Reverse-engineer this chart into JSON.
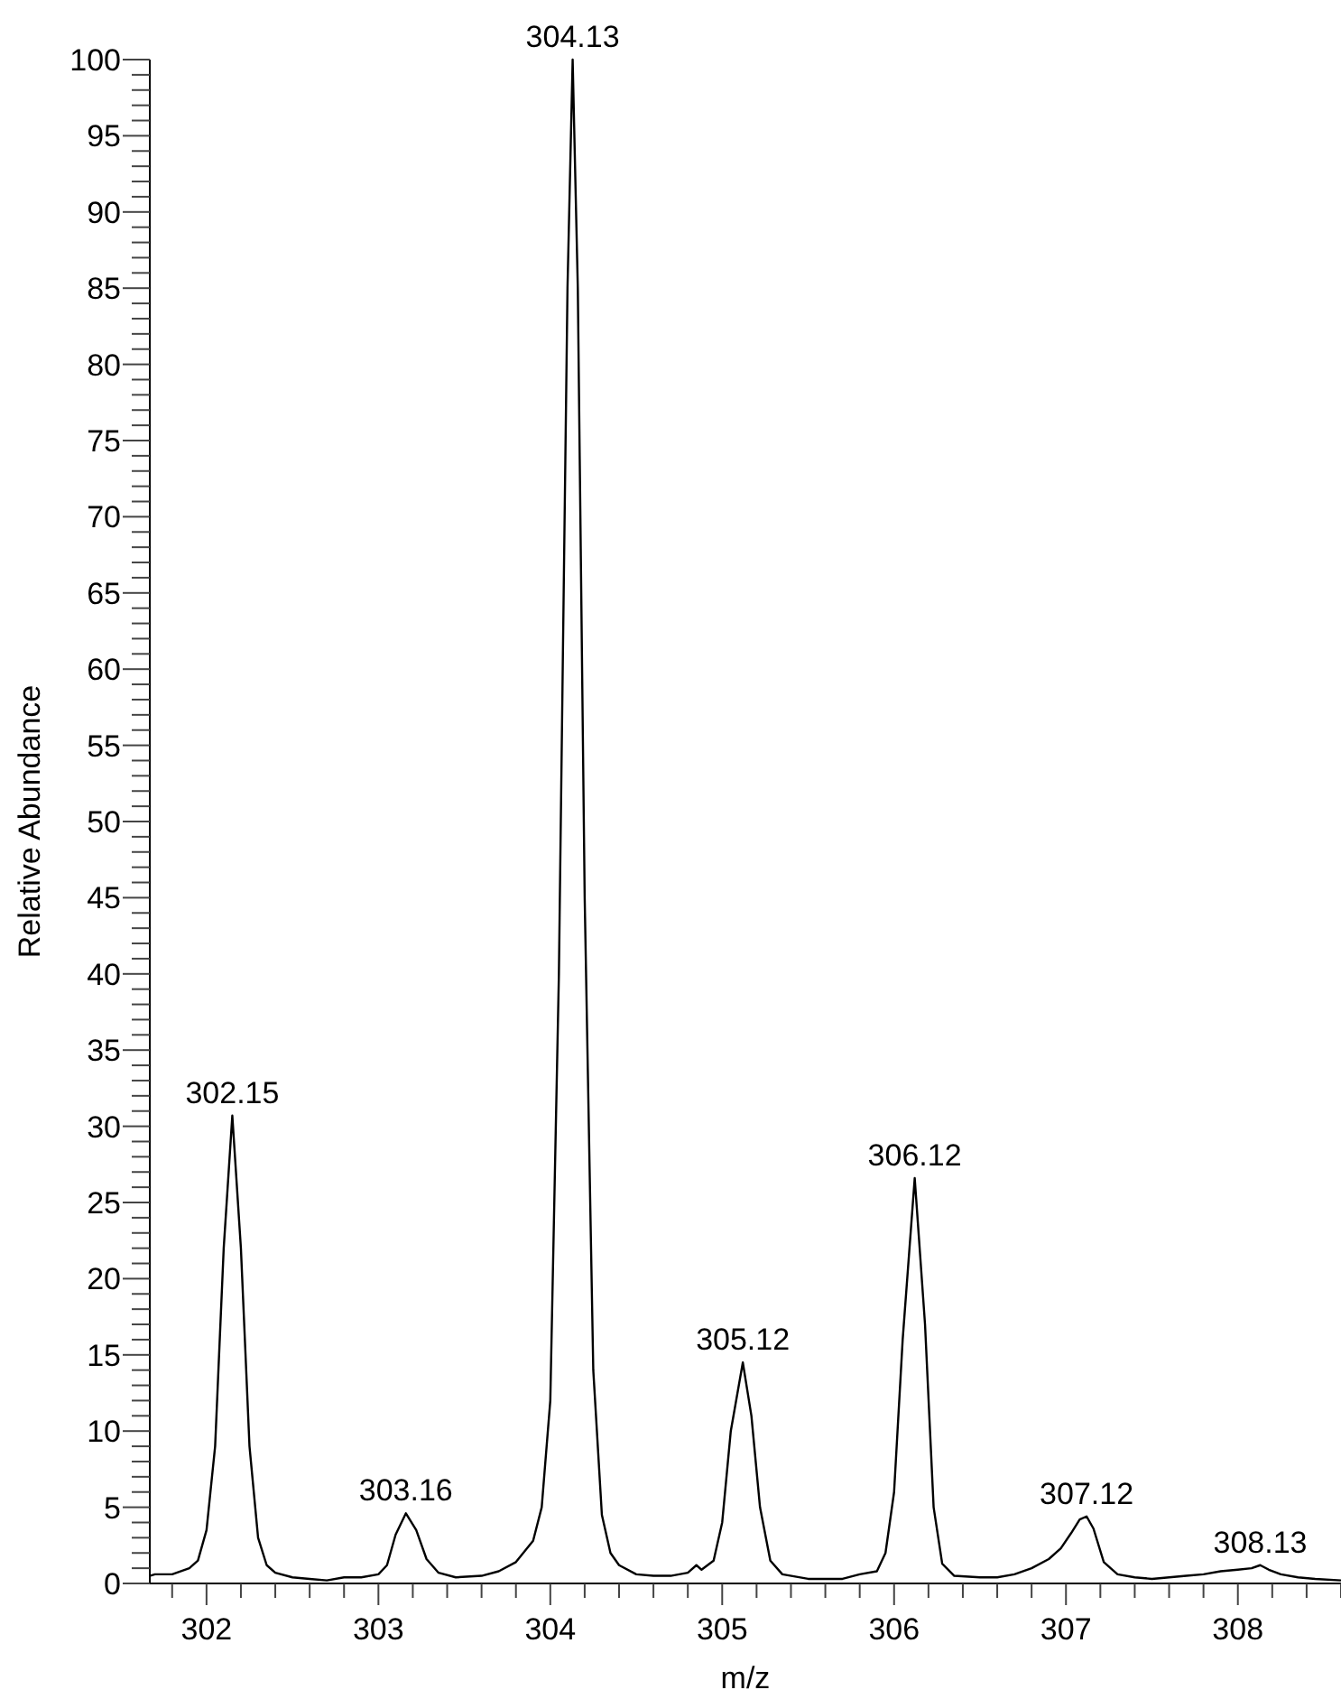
{
  "chart_data": {
    "type": "line",
    "xlabel": "m/z",
    "ylabel": "Relative Abundance",
    "xlim": [
      301.67,
      308.6
    ],
    "xticks": [
      {
        "value": 301.8,
        "label": null
      },
      302,
      {
        "value": 302.2,
        "label": null
      },
      {
        "value": 302.4,
        "label": null
      },
      {
        "value": 302.6,
        "label": null
      },
      {
        "value": 302.8,
        "label": null
      },
      303,
      {
        "value": 303.2,
        "label": null
      },
      {
        "value": 303.4,
        "label": null
      },
      {
        "value": 303.6,
        "label": null
      },
      {
        "value": 303.8,
        "label": null
      },
      304,
      {
        "value": 304.2,
        "label": null
      },
      {
        "value": 304.4,
        "label": null
      },
      {
        "value": 304.6,
        "label": null
      },
      {
        "value": 304.8,
        "label": null
      },
      305,
      {
        "value": 305.2,
        "label": null
      },
      {
        "value": 305.4,
        "label": null
      },
      {
        "value": 305.6,
        "label": null
      },
      {
        "value": 305.8,
        "label": null
      },
      306,
      {
        "value": 306.2,
        "label": null
      },
      {
        "value": 306.4,
        "label": null
      },
      {
        "value": 306.6,
        "label": null
      },
      {
        "value": 306.8,
        "label": null
      },
      307,
      {
        "value": 307.2,
        "label": null
      },
      {
        "value": 307.4,
        "label": null
      },
      {
        "value": 307.6,
        "label": null
      },
      {
        "value": 307.8,
        "label": null
      },
      308,
      {
        "value": 308.2,
        "label": null
      },
      {
        "value": 308.4,
        "label": null
      },
      {
        "value": 308.6,
        "label": null
      }
    ],
    "ylim": [
      0,
      100
    ],
    "yticks": [
      0,
      {
        "value": 1,
        "label": null
      },
      {
        "value": 2,
        "label": null
      },
      {
        "value": 3,
        "label": null
      },
      {
        "value": 4,
        "label": null
      },
      5,
      {
        "value": 6,
        "label": null
      },
      {
        "value": 7,
        "label": null
      },
      {
        "value": 8,
        "label": null
      },
      {
        "value": 9,
        "label": null
      },
      10,
      {
        "value": 11,
        "label": null
      },
      {
        "value": 12,
        "label": null
      },
      {
        "value": 13,
        "label": null
      },
      {
        "value": 14,
        "label": null
      },
      15,
      {
        "value": 16,
        "label": null
      },
      {
        "value": 17,
        "label": null
      },
      {
        "value": 18,
        "label": null
      },
      {
        "value": 19,
        "label": null
      },
      20,
      {
        "value": 21,
        "label": null
      },
      {
        "value": 22,
        "label": null
      },
      {
        "value": 23,
        "label": null
      },
      {
        "value": 24,
        "label": null
      },
      25,
      {
        "value": 26,
        "label": null
      },
      {
        "value": 27,
        "label": null
      },
      {
        "value": 28,
        "label": null
      },
      {
        "value": 29,
        "label": null
      },
      30,
      {
        "value": 31,
        "label": null
      },
      {
        "value": 32,
        "label": null
      },
      {
        "value": 33,
        "label": null
      },
      {
        "value": 34,
        "label": null
      },
      35,
      {
        "value": 36,
        "label": null
      },
      {
        "value": 37,
        "label": null
      },
      {
        "value": 38,
        "label": null
      },
      {
        "value": 39,
        "label": null
      },
      40,
      {
        "value": 41,
        "label": null
      },
      {
        "value": 42,
        "label": null
      },
      {
        "value": 43,
        "label": null
      },
      {
        "value": 44,
        "label": null
      },
      45,
      {
        "value": 46,
        "label": null
      },
      {
        "value": 47,
        "label": null
      },
      {
        "value": 48,
        "label": null
      },
      {
        "value": 49,
        "label": null
      },
      50,
      {
        "value": 51,
        "label": null
      },
      {
        "value": 52,
        "label": null
      },
      {
        "value": 53,
        "label": null
      },
      {
        "value": 54,
        "label": null
      },
      55,
      {
        "value": 56,
        "label": null
      },
      {
        "value": 57,
        "label": null
      },
      {
        "value": 58,
        "label": null
      },
      {
        "value": 59,
        "label": null
      },
      60,
      {
        "value": 61,
        "label": null
      },
      {
        "value": 62,
        "label": null
      },
      {
        "value": 63,
        "label": null
      },
      {
        "value": 64,
        "label": null
      },
      65,
      {
        "value": 66,
        "label": null
      },
      {
        "value": 67,
        "label": null
      },
      {
        "value": 68,
        "label": null
      },
      {
        "value": 69,
        "label": null
      },
      70,
      {
        "value": 71,
        "label": null
      },
      {
        "value": 72,
        "label": null
      },
      {
        "value": 73,
        "label": null
      },
      {
        "value": 74,
        "label": null
      },
      75,
      {
        "value": 76,
        "label": null
      },
      {
        "value": 77,
        "label": null
      },
      {
        "value": 78,
        "label": null
      },
      {
        "value": 79,
        "label": null
      },
      80,
      {
        "value": 81,
        "label": null
      },
      {
        "value": 82,
        "label": null
      },
      {
        "value": 83,
        "label": null
      },
      {
        "value": 84,
        "label": null
      },
      85,
      {
        "value": 86,
        "label": null
      },
      {
        "value": 87,
        "label": null
      },
      {
        "value": 88,
        "label": null
      },
      {
        "value": 89,
        "label": null
      },
      90,
      {
        "value": 91,
        "label": null
      },
      {
        "value": 92,
        "label": null
      },
      {
        "value": 93,
        "label": null
      },
      {
        "value": 94,
        "label": null
      },
      95,
      {
        "value": 96,
        "label": null
      },
      {
        "value": 97,
        "label": null
      },
      {
        "value": 98,
        "label": null
      },
      {
        "value": 99,
        "label": null
      },
      100
    ],
    "grid": false,
    "marker": "none",
    "line_style": "solid",
    "series": [
      {
        "color": "#000000",
        "x": [
          301.67,
          301.7,
          301.8,
          301.9,
          301.95,
          302.0,
          302.05,
          302.1,
          302.15,
          302.2,
          302.25,
          302.3,
          302.35,
          302.4,
          302.5,
          302.6,
          302.7,
          302.8,
          302.9,
          303.0,
          303.05,
          303.1,
          303.16,
          303.22,
          303.28,
          303.35,
          303.45,
          303.6,
          303.7,
          303.8,
          303.9,
          303.95,
          304.0,
          304.05,
          304.1,
          304.13,
          304.16,
          304.2,
          304.25,
          304.3,
          304.35,
          304.4,
          304.5,
          304.6,
          304.7,
          304.8,
          304.85,
          304.88,
          304.95,
          305.0,
          305.05,
          305.12,
          305.17,
          305.22,
          305.28,
          305.35,
          305.5,
          305.6,
          305.7,
          305.8,
          305.9,
          305.95,
          306.0,
          306.05,
          306.12,
          306.18,
          306.23,
          306.28,
          306.35,
          306.5,
          306.6,
          306.7,
          306.8,
          306.9,
          306.97,
          307.03,
          307.08,
          307.12,
          307.16,
          307.22,
          307.3,
          307.4,
          307.5,
          307.6,
          307.7,
          307.8,
          307.9,
          308.0,
          308.08,
          308.13,
          308.18,
          308.25,
          308.35,
          308.45,
          308.6
        ],
        "values": [
          0.5,
          0.6,
          0.6,
          1.0,
          1.5,
          3.5,
          9,
          22,
          30.7,
          22,
          9,
          3,
          1.2,
          0.7,
          0.4,
          0.3,
          0.2,
          0.4,
          0.4,
          0.6,
          1.2,
          3.2,
          4.6,
          3.5,
          1.6,
          0.7,
          0.4,
          0.5,
          0.8,
          1.4,
          2.8,
          5,
          12,
          40,
          85,
          100,
          85,
          45,
          14,
          4.5,
          2,
          1.2,
          0.6,
          0.5,
          0.5,
          0.7,
          1.2,
          0.9,
          1.5,
          4,
          10,
          14.5,
          11,
          5,
          1.5,
          0.6,
          0.3,
          0.3,
          0.3,
          0.6,
          0.8,
          2,
          6,
          16,
          26.6,
          17,
          5,
          1.3,
          0.5,
          0.4,
          0.4,
          0.6,
          1.0,
          1.6,
          2.3,
          3.3,
          4.2,
          4.4,
          3.6,
          1.4,
          0.6,
          0.4,
          0.3,
          0.4,
          0.5,
          0.6,
          0.8,
          0.9,
          1.0,
          1.2,
          0.9,
          0.6,
          0.4,
          0.3,
          0.2
        ]
      }
    ],
    "annotations": [
      {
        "text": "302.15",
        "x": 302.15,
        "y": 30.7
      },
      {
        "text": "303.16",
        "x": 303.16,
        "y": 4.6
      },
      {
        "text": "304.13",
        "x": 304.13,
        "y": 100
      },
      {
        "text": "305.12",
        "x": 305.12,
        "y": 14.5
      },
      {
        "text": "306.12",
        "x": 306.12,
        "y": 26.6
      },
      {
        "text": "307.12",
        "x": 307.12,
        "y": 4.4
      },
      {
        "text": "308.13",
        "x": 308.13,
        "y": 1.2
      }
    ]
  }
}
